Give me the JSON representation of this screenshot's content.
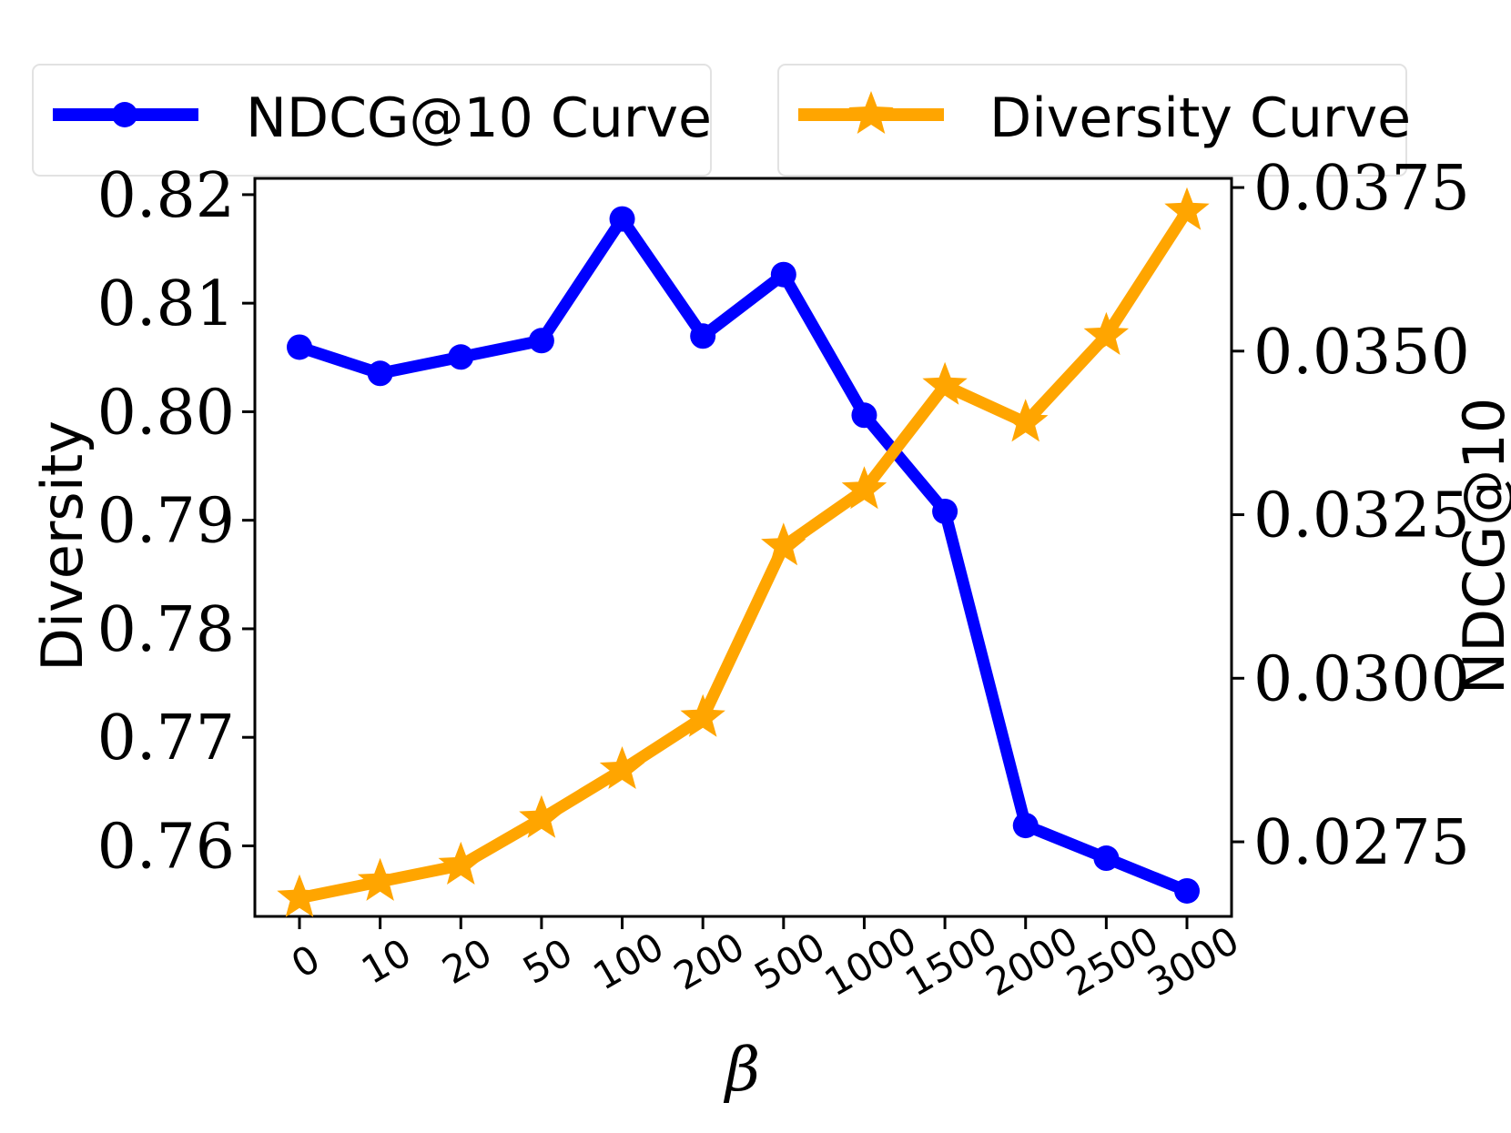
{
  "chart_data": {
    "type": "line",
    "xlabel": "β",
    "ylabel_left": "Diversity",
    "ylabel_right": "NDCG@10",
    "categories": [
      "0",
      "10",
      "20",
      "50",
      "100",
      "200",
      "500",
      "1000",
      "1500",
      "2000",
      "2500",
      "3000"
    ],
    "left_axis": {
      "ylim": [
        0.7535,
        0.8215
      ],
      "ticks": [
        0.76,
        0.77,
        0.78,
        0.79,
        0.8,
        0.81,
        0.82
      ],
      "tick_labels": [
        "0.76",
        "0.77",
        "0.78",
        "0.79",
        "0.80",
        "0.81",
        "0.82"
      ]
    },
    "right_axis": {
      "ylim": [
        0.02636,
        0.03764
      ],
      "ticks": [
        0.0275,
        0.03,
        0.0325,
        0.035,
        0.0375
      ],
      "tick_labels": [
        "0.0275",
        "0.0300",
        "0.0325",
        "0.0350",
        "0.0375"
      ]
    },
    "series": [
      {
        "name": "NDCG@10 Curve",
        "axis": "right",
        "color": "#0000ff",
        "marker": "circle",
        "values": [
          0.03506,
          0.03466,
          0.03491,
          0.03516,
          0.03702,
          0.03523,
          0.03617,
          0.03402,
          0.03255,
          0.02775,
          0.02725,
          0.02675
        ]
      },
      {
        "name": "Diversity Curve",
        "axis": "left",
        "color": "#ffa500",
        "marker": "star",
        "values": [
          0.7552,
          0.7567,
          0.7582,
          0.7625,
          0.767,
          0.7718,
          0.7876,
          0.7928,
          0.8024,
          0.799,
          0.807,
          0.8185
        ]
      }
    ],
    "legend": {
      "placement": "top",
      "entries": [
        "NDCG@10 Curve",
        "Diversity Curve"
      ]
    }
  }
}
